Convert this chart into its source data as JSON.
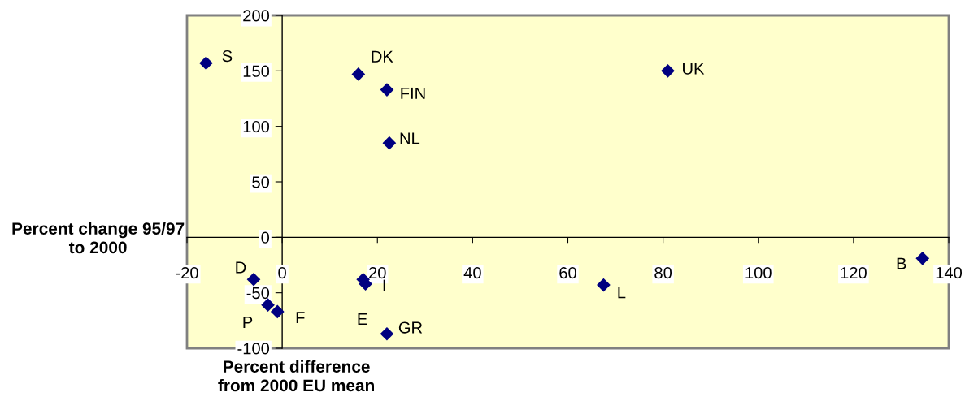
{
  "chart_data": {
    "type": "scatter",
    "xlabel": "Percent difference\nfrom 2000 EU mean",
    "ylabel": "Percent change 95/97\nto 2000",
    "x": [
      -16,
      16,
      22,
      22.5,
      81,
      -6,
      -3,
      -1,
      17.5,
      17,
      22,
      67.5,
      134.5
    ],
    "values": [
      157,
      147,
      133,
      85,
      150,
      -38,
      -61,
      -67,
      -42,
      -38,
      -87,
      -43,
      -19
    ],
    "color": "#000080",
    "marker": "diamond",
    "xlim": [
      -20,
      140
    ],
    "ylim": [
      -100,
      200
    ],
    "xticks": [
      -20,
      0,
      20,
      40,
      60,
      80,
      100,
      120,
      140
    ],
    "yticks": [
      -100,
      -50,
      0,
      50,
      100,
      150,
      200
    ],
    "annotations": [
      {
        "text": "S",
        "x": -16,
        "y": 157
      },
      {
        "text": "DK",
        "x": 16,
        "y": 147
      },
      {
        "text": "FIN",
        "x": 22,
        "y": 133
      },
      {
        "text": "NL",
        "x": 22.5,
        "y": 85
      },
      {
        "text": "UK",
        "x": 81,
        "y": 150
      },
      {
        "text": "D",
        "x": -6,
        "y": -38
      },
      {
        "text": "P",
        "x": -3,
        "y": -61
      },
      {
        "text": "F",
        "x": -1,
        "y": -67
      },
      {
        "text": "E",
        "x": 17.5,
        "y": -42
      },
      {
        "text": "I",
        "x": 17,
        "y": -38
      },
      {
        "text": "GR",
        "x": 22,
        "y": -87
      },
      {
        "text": "L",
        "x": 67.5,
        "y": -43
      },
      {
        "text": "B",
        "x": 134.5,
        "y": -19
      }
    ]
  }
}
